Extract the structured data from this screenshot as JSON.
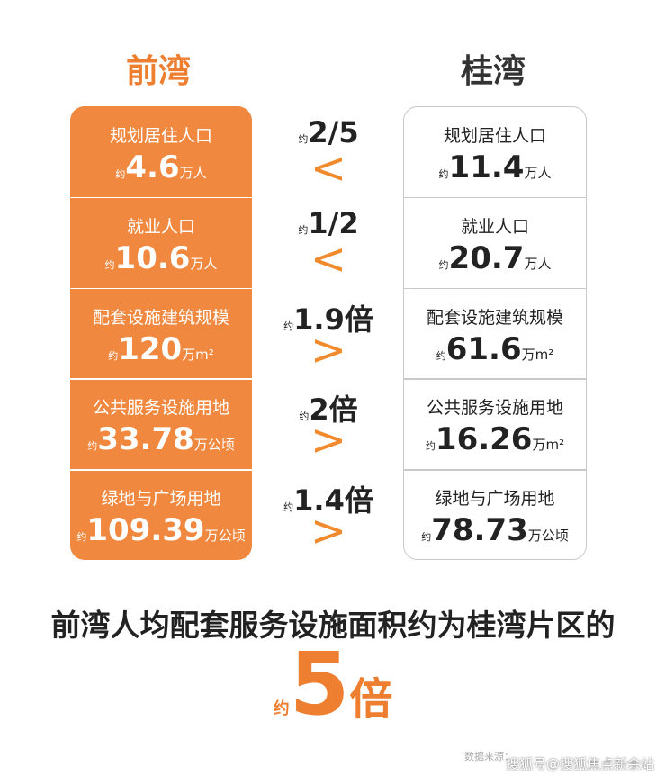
{
  "header": {
    "left": "前湾",
    "right": "桂湾"
  },
  "approx": "约",
  "rows": [
    {
      "label": "规划居住人口",
      "left_value": "4.6",
      "left_unit": "万人",
      "right_value": "11.4",
      "right_unit": "万人",
      "ratio": "2/5",
      "symbol": "<"
    },
    {
      "label": "就业人口",
      "left_value": "10.6",
      "left_unit": "万人",
      "right_value": "20.7",
      "right_unit": "万人",
      "ratio": "1/2",
      "symbol": "<"
    },
    {
      "label": "配套设施建筑规模",
      "left_value": "120",
      "left_unit": "万m²",
      "right_value": "61.6",
      "right_unit": "万m²",
      "ratio": "1.9倍",
      "symbol": ">"
    },
    {
      "label": "公共服务设施用地",
      "left_value": "33.78",
      "left_unit": "万公顷",
      "right_value": "16.26",
      "right_unit": "万m²",
      "ratio": "2倍",
      "symbol": ">"
    },
    {
      "label": "绿地与广场用地",
      "left_value": "109.39",
      "left_unit": "万公顷",
      "right_value": "78.73",
      "right_unit": "万公顷",
      "ratio": "1.4倍",
      "symbol": ">"
    }
  ],
  "summary": {
    "text": "前湾人均配套服务设施面积约为桂湾片区的",
    "value": "5",
    "unit": "倍"
  },
  "footer": {
    "source": "数据来源：",
    "watermark": "搜狐号@搜狐焦点新余站"
  }
}
